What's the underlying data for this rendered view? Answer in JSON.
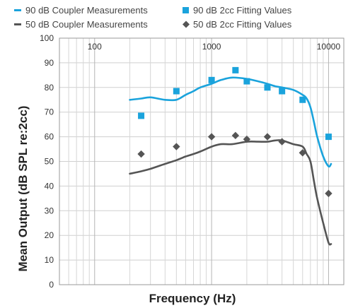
{
  "chart_data": {
    "type": "line",
    "xlabel": "Frequency (Hz)",
    "ylabel": "Mean Output (dB SPL re:2cc)",
    "xscale": "log",
    "xlim": [
      50,
      13500
    ],
    "ylim": [
      0,
      100
    ],
    "x_ticks": [
      100,
      1000,
      10000
    ],
    "x_tick_labels": [
      "100",
      "1000",
      "10000"
    ],
    "y_ticks": [
      0,
      10,
      20,
      30,
      40,
      50,
      60,
      70,
      80,
      90,
      100
    ],
    "y_tick_labels": [
      "0",
      "10",
      "20",
      "30",
      "40",
      "50",
      "60",
      "70",
      "80",
      "90",
      "100"
    ],
    "grid": true,
    "legend_position": "top",
    "series": [
      {
        "name": "90 dB Coupler Measurements",
        "kind": "line",
        "color": "#1aa3dc",
        "x": [
          200,
          250,
          300,
          400,
          500,
          600,
          700,
          800,
          1000,
          1200,
          1500,
          2000,
          2500,
          3000,
          3500,
          4000,
          5000,
          6000,
          6500,
          7000,
          7500,
          8000,
          9000,
          10000,
          10500
        ],
        "y": [
          75,
          75.5,
          76,
          75,
          75,
          77,
          78.5,
          80,
          81.5,
          83,
          84,
          83.5,
          82.5,
          81.5,
          80.5,
          80,
          79,
          77,
          75.5,
          72,
          66,
          60,
          52,
          48,
          49
        ]
      },
      {
        "name": "90 dB 2cc Fitting Values",
        "kind": "scatter",
        "marker": "square",
        "color": "#1aa3dc",
        "x": [
          250,
          500,
          1000,
          1600,
          2000,
          3000,
          4000,
          6000,
          10000
        ],
        "y": [
          68.5,
          78.5,
          83,
          87,
          82.5,
          80,
          78.5,
          75,
          60
        ]
      },
      {
        "name": "50 dB Coupler Measurements",
        "kind": "line",
        "color": "#555555",
        "x": [
          200,
          250,
          300,
          400,
          500,
          600,
          700,
          800,
          1000,
          1200,
          1500,
          2000,
          2500,
          3000,
          3500,
          4000,
          5000,
          6000,
          6500,
          7000,
          7500,
          8000,
          9000,
          10000,
          10500
        ],
        "y": [
          45,
          46,
          47,
          49,
          50.5,
          52,
          53,
          54,
          56,
          57,
          57,
          58,
          58,
          58,
          58.5,
          58.5,
          57,
          56,
          53,
          50,
          42,
          35,
          25,
          17,
          16.5
        ]
      },
      {
        "name": "50 dB 2cc Fitting Values",
        "kind": "scatter",
        "marker": "diamond",
        "color": "#555555",
        "x": [
          250,
          500,
          1000,
          1600,
          2000,
          3000,
          4000,
          6000,
          10000
        ],
        "y": [
          53,
          56,
          60,
          60.5,
          59,
          60,
          58,
          53.5,
          37
        ]
      }
    ]
  }
}
